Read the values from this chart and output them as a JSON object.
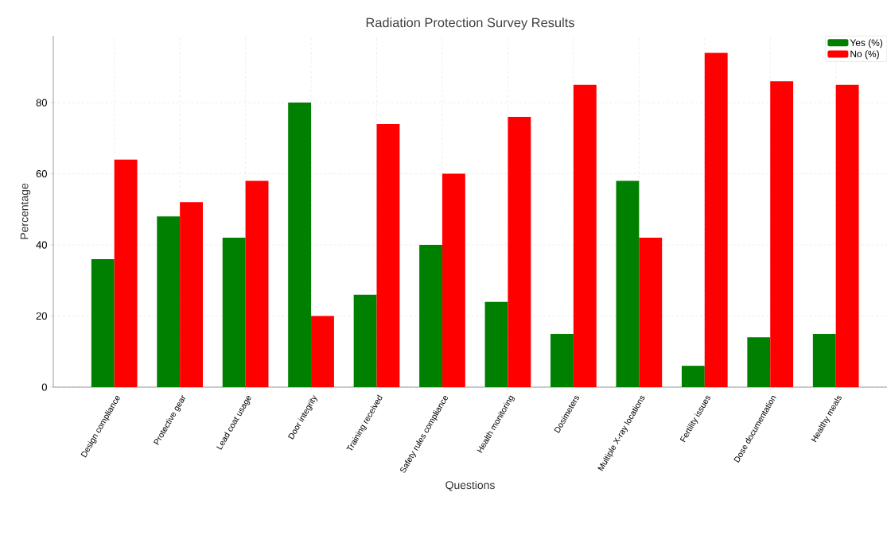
{
  "chart_data": {
    "type": "bar",
    "title": "Radiation Protection Survey Results",
    "xlabel": "Questions",
    "ylabel": "Percentage",
    "categories": [
      "Design compliance",
      "Protective gear",
      "Lead coat usage",
      "Door integrity",
      "Training received",
      "Safety rules compliance",
      "Health monitoring",
      "Dosimeters",
      "Multiple X-ray locations",
      "Fertility issues",
      "Dose documentation",
      "Healthy meals"
    ],
    "series": [
      {
        "name": "Yes (%)",
        "color": "#008000",
        "values": [
          36,
          48,
          42,
          80,
          26,
          40,
          24,
          15,
          58,
          6,
          14,
          15
        ]
      },
      {
        "name": "No (%)",
        "color": "#ff0000",
        "values": [
          64,
          52,
          58,
          20,
          74,
          60,
          76,
          85,
          42,
          94,
          86,
          85
        ]
      }
    ],
    "ylim": [
      0,
      98.8
    ],
    "yticks": [
      0,
      20,
      40,
      60,
      80
    ],
    "grid": true,
    "legend": "top right"
  }
}
